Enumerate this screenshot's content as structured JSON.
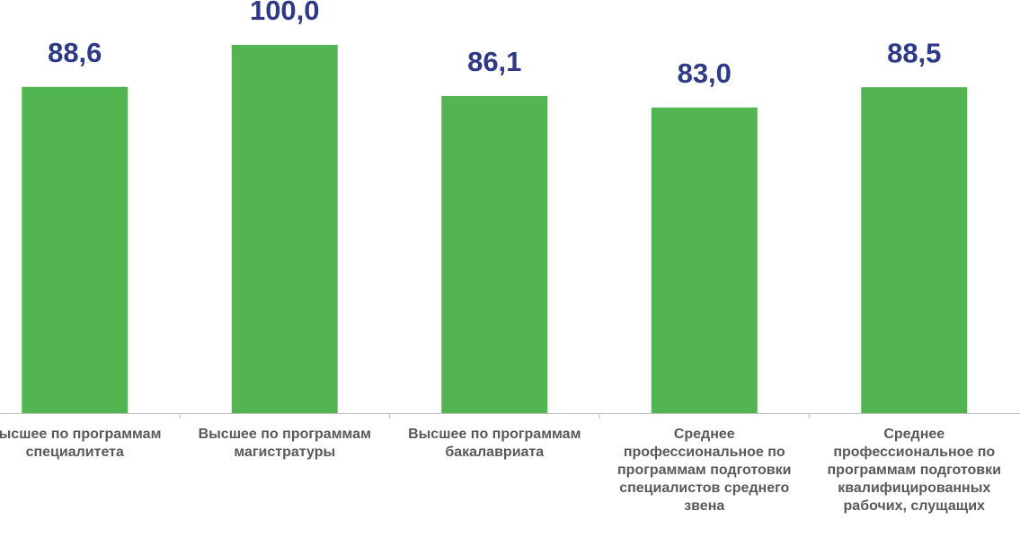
{
  "chart_data": {
    "type": "bar",
    "categories": [
      "Высшее по программам специалитета",
      "Высшее по программам магистратуры",
      "Высшее по программам бакалавриата",
      "Среднее профессиональное по программам подготовки специалистов среднего звена",
      "Среднее профессиональное по программам подготовки квалифицированных рабочих, слущащих"
    ],
    "values": [
      88.6,
      100.0,
      86.1,
      83.0,
      88.5
    ],
    "value_labels": [
      "88,6",
      "100,0",
      "86,1",
      "83,0",
      "88,5"
    ],
    "color": "#52b552",
    "label_color": "#2e3a87",
    "ylim": [
      0,
      100
    ]
  }
}
